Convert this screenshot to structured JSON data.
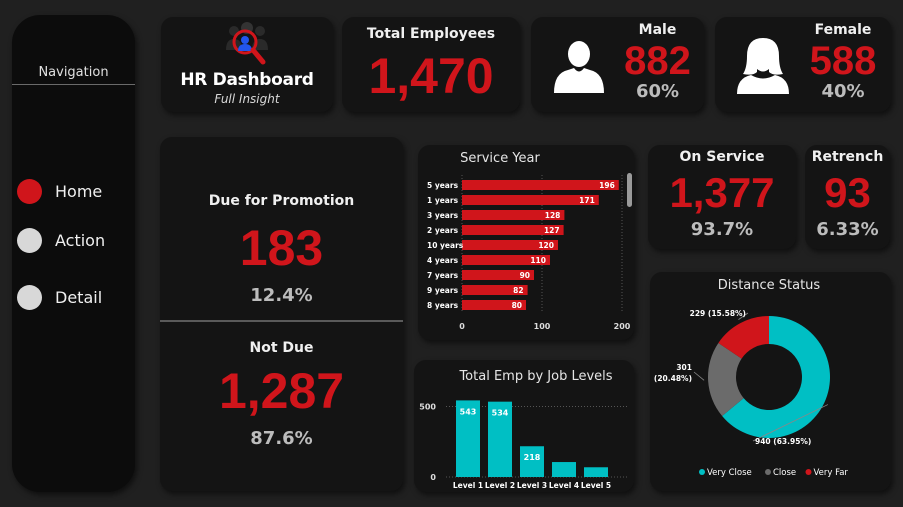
{
  "nav": {
    "title": "Navigation",
    "items": [
      {
        "label": "Home",
        "color": "#D0151B"
      },
      {
        "label": "Action",
        "color": "#D8D8D8"
      },
      {
        "label": "Detail",
        "color": "#D8D8D8"
      }
    ]
  },
  "logo": {
    "title": "HR Dashboard",
    "subtitle": "Full Insight",
    "icon": "people-search-icon"
  },
  "total": {
    "title": "Total Employees",
    "value": "1,470"
  },
  "male": {
    "title": "Male",
    "value": "882",
    "pct": "60%",
    "icon": "male-person-icon"
  },
  "female": {
    "title": "Female",
    "value": "588",
    "pct": "40%",
    "icon": "female-person-icon"
  },
  "promotion": {
    "due_title": "Due for Promotion",
    "due_value": "183",
    "due_pct": "12.4%",
    "notdue_title": "Not Due",
    "notdue_value": "1,287",
    "notdue_pct": "87.6%"
  },
  "on_service": {
    "title": "On Service",
    "value": "1,377",
    "pct": "93.7%"
  },
  "retrench": {
    "title": "Retrench",
    "value": "93",
    "pct": "6.33%"
  },
  "colors": {
    "accent_red": "#D0151B",
    "teal": "#00BFC4",
    "grey": "#6B6B6B",
    "background": "#202020",
    "card": "#141414"
  },
  "chart_data": [
    {
      "type": "bar",
      "orientation": "horizontal",
      "title": "Service Year",
      "categories": [
        "5 years",
        "1 years",
        "3 years",
        "2 years",
        "10 years",
        "4 years",
        "7 years",
        "9 years",
        "8 years"
      ],
      "values": [
        196,
        171,
        128,
        127,
        120,
        110,
        90,
        82,
        80
      ],
      "xlim": [
        0,
        200
      ],
      "xticks": [
        "0",
        "100",
        "200"
      ],
      "color": "#D0151B",
      "scrollable": true
    },
    {
      "type": "bar",
      "title": "Total Emp by Job Levels",
      "categories": [
        "Level 1",
        "Level 2",
        "Level 3",
        "Level 4",
        "Level 5"
      ],
      "values": [
        543,
        534,
        218,
        106,
        69
      ],
      "value_labels": [
        "543",
        "534",
        "218",
        "",
        ""
      ],
      "ylim": [
        0,
        560
      ],
      "yticks": [
        "0",
        "500"
      ],
      "color": "#00BFC4"
    },
    {
      "type": "pie",
      "style": "donut",
      "title": "Distance Status",
      "legend_position": "bottom",
      "slices": [
        {
          "name": "Very Close",
          "value": 940,
          "label": "940 (63.95%)",
          "color": "#00BFC4"
        },
        {
          "name": "Close",
          "value": 301,
          "label": "301 (20.48%)",
          "color": "#6B6B6B"
        },
        {
          "name": "Very Far",
          "value": 229,
          "label": "229 (15.58%)",
          "color": "#D0151B"
        }
      ]
    }
  ]
}
